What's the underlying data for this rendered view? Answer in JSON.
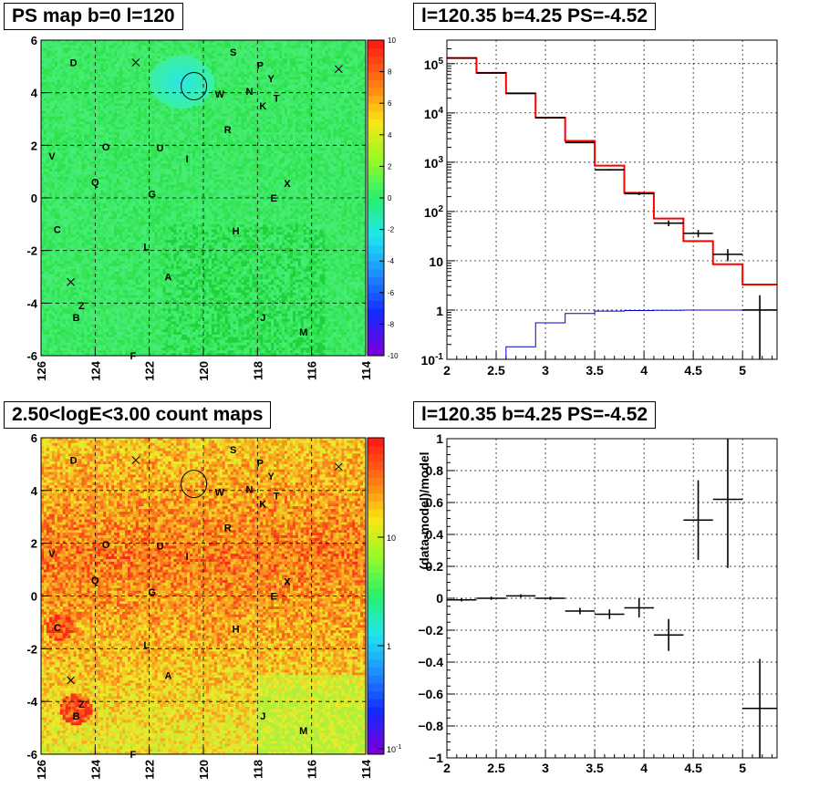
{
  "panels": {
    "ps_map": {
      "title": "PS map b=0 l=120"
    },
    "spectrum": {
      "title": "l=120.35 b=4.25 PS=-4.52"
    },
    "count_map": {
      "title": "2.50<logE<3.00 count maps"
    },
    "residual": {
      "title": "l=120.35 b=4.25 PS=-4.52"
    }
  },
  "colors": {
    "model_line": "#ff0000",
    "data_points": "#000000",
    "background_model": "#0000cc"
  },
  "chart_data": [
    {
      "id": "ps_map",
      "type": "heatmap",
      "title": "PS map b=0 l=120",
      "xlim": [
        126,
        114
      ],
      "ylim": [
        -6,
        6
      ],
      "xticks": [
        126,
        124,
        122,
        120,
        118,
        116,
        114
      ],
      "yticks": [
        -6,
        -4,
        -2,
        0,
        2,
        4,
        6
      ],
      "grid": true,
      "colorbar": {
        "min": -10,
        "max": 10,
        "ticks": [
          -10,
          -8,
          -6,
          -4,
          -2,
          0,
          2,
          4,
          6,
          8,
          10
        ],
        "scale": "linear"
      },
      "dominant_value": 1,
      "markers": {
        "circle": {
          "l": 120.35,
          "b": 4.25
        },
        "crosses": [
          {
            "l": 122.5,
            "b": 5.15
          },
          {
            "l": 115.0,
            "b": 4.9
          },
          {
            "l": 124.9,
            "b": -3.2
          }
        ]
      },
      "labels": [
        {
          "t": "D",
          "l": 124.8,
          "b": 5.15
        },
        {
          "t": "S",
          "l": 118.9,
          "b": 5.55
        },
        {
          "t": "P",
          "l": 117.9,
          "b": 5.05
        },
        {
          "t": "Y",
          "l": 117.5,
          "b": 4.55
        },
        {
          "t": "N",
          "l": 118.3,
          "b": 4.05
        },
        {
          "t": "W",
          "l": 119.4,
          "b": 3.95
        },
        {
          "t": "K",
          "l": 117.8,
          "b": 3.5
        },
        {
          "t": "T",
          "l": 117.3,
          "b": 3.8
        },
        {
          "t": "R",
          "l": 119.1,
          "b": 2.6
        },
        {
          "t": "V",
          "l": 125.6,
          "b": 1.6
        },
        {
          "t": "O",
          "l": 123.6,
          "b": 1.95
        },
        {
          "t": "U",
          "l": 121.6,
          "b": 1.9
        },
        {
          "t": "I",
          "l": 120.6,
          "b": 1.5
        },
        {
          "t": "Q",
          "l": 124.0,
          "b": 0.6
        },
        {
          "t": "X",
          "l": 116.9,
          "b": 0.55
        },
        {
          "t": "G",
          "l": 121.9,
          "b": 0.15
        },
        {
          "t": "E",
          "l": 117.4,
          "b": 0.0
        },
        {
          "t": "C",
          "l": 125.4,
          "b": -1.2
        },
        {
          "t": "H",
          "l": 118.8,
          "b": -1.25
        },
        {
          "t": "L",
          "l": 122.1,
          "b": -1.85
        },
        {
          "t": "A",
          "l": 121.3,
          "b": -3.0
        },
        {
          "t": "Z",
          "l": 124.5,
          "b": -4.1
        },
        {
          "t": "B",
          "l": 124.7,
          "b": -4.55
        },
        {
          "t": "J",
          "l": 117.8,
          "b": -4.55
        },
        {
          "t": "M",
          "l": 116.3,
          "b": -5.1
        },
        {
          "t": "F",
          "l": 122.6,
          "b": -6.0
        }
      ]
    },
    {
      "id": "spectrum",
      "type": "line",
      "title": "l=120.35 b=4.25 PS=-4.52",
      "xlim": [
        2,
        5.35
      ],
      "ylim": [
        0.1,
        300000
      ],
      "yscale": "log",
      "xticks": [
        2,
        2.5,
        3,
        3.5,
        4,
        4.5,
        5
      ],
      "ytick_labels": [
        "10^-1",
        "1",
        "10",
        "10^2",
        "10^3",
        "10^4",
        "10^5"
      ],
      "grid": true,
      "bin_edges": [
        2.0,
        2.3,
        2.6,
        2.9,
        3.2,
        3.5,
        3.8,
        4.1,
        4.4,
        4.7,
        5.0,
        5.35
      ],
      "series": [
        {
          "values": [
            130000,
            65000,
            25000,
            8000,
            2700,
            850,
            240,
            72,
            25,
            8.5,
            3.3
          ]
        },
        {
          "values": [
            130000,
            65000,
            25000,
            8000,
            2500,
            700,
            230,
            58,
            36,
            13.5,
            1.0
          ],
          "errors": [
            360,
            255,
            158,
            89,
            50,
            26,
            15,
            7.6,
            6.0,
            3.7,
            1.0
          ]
        },
        {
          "values": [
            0.1,
            0.1,
            0.18,
            0.55,
            0.85,
            0.95,
            0.98,
            0.99,
            1.0,
            1.0,
            1.0
          ]
        }
      ]
    },
    {
      "id": "count_map",
      "type": "heatmap",
      "title": "2.50<logE<3.00 count maps",
      "xlim": [
        126,
        114
      ],
      "ylim": [
        -6,
        6
      ],
      "xticks": [
        126,
        124,
        122,
        120,
        118,
        116,
        114
      ],
      "yticks": [
        -6,
        -4,
        -2,
        0,
        2,
        4,
        6
      ],
      "grid": true,
      "colorbar": {
        "scale": "log",
        "tick_labels": [
          "10^-1",
          "1",
          "10"
        ]
      },
      "markers": {
        "circle": {
          "l": 120.35,
          "b": 4.25
        },
        "crosses": [
          {
            "l": 122.5,
            "b": 5.15
          },
          {
            "l": 115.0,
            "b": 4.9
          },
          {
            "l": 124.9,
            "b": -3.2
          }
        ]
      }
    },
    {
      "id": "residual",
      "type": "scatter",
      "title": "l=120.35 b=4.25 PS=-4.52",
      "ylabel": "(data-model)/model",
      "xlim": [
        2,
        5.35
      ],
      "ylim": [
        -1,
        1
      ],
      "xticks": [
        2,
        2.5,
        3,
        3.5,
        4,
        4.5,
        5
      ],
      "yticks": [
        -1,
        -0.8,
        -0.6,
        -0.4,
        -0.2,
        0,
        0.2,
        0.4,
        0.6,
        0.8,
        1
      ],
      "grid": true,
      "points": [
        {
          "x": 2.15,
          "y": -0.01,
          "xerr": 0.15,
          "yerr": 0.01
        },
        {
          "x": 2.45,
          "y": 0.0,
          "xerr": 0.15,
          "yerr": 0.01
        },
        {
          "x": 2.75,
          "y": 0.015,
          "xerr": 0.15,
          "yerr": 0.01
        },
        {
          "x": 3.05,
          "y": 0.0,
          "xerr": 0.15,
          "yerr": 0.01
        },
        {
          "x": 3.35,
          "y": -0.08,
          "xerr": 0.15,
          "yerr": 0.02
        },
        {
          "x": 3.65,
          "y": -0.1,
          "xerr": 0.15,
          "yerr": 0.03
        },
        {
          "x": 3.95,
          "y": -0.06,
          "xerr": 0.15,
          "yerr": 0.06
        },
        {
          "x": 4.25,
          "y": -0.23,
          "xerr": 0.15,
          "yerr": 0.1
        },
        {
          "x": 4.55,
          "y": 0.49,
          "xerr": 0.15,
          "yerr": 0.25
        },
        {
          "x": 4.85,
          "y": 0.62,
          "xerr": 0.15,
          "yerr": 0.43
        },
        {
          "x": 5.175,
          "y": -0.69,
          "xerr": 0.175,
          "yerr": 0.31
        }
      ]
    }
  ]
}
